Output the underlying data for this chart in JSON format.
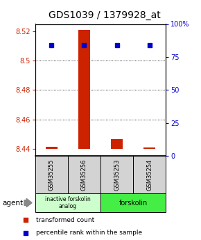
{
  "title": "GDS1039 / 1379928_at",
  "samples": [
    "GSM35255",
    "GSM35256",
    "GSM35253",
    "GSM35254"
  ],
  "bar_values": [
    8.4415,
    8.521,
    8.4465,
    8.4408
  ],
  "bar_base": 8.44,
  "ylim_left": [
    8.435,
    8.525
  ],
  "ylim_right": [
    0,
    100
  ],
  "yticks_left": [
    8.44,
    8.46,
    8.48,
    8.5,
    8.52
  ],
  "ytick_labels_left": [
    "8.44",
    "8.46",
    "8.48",
    "8.5",
    "8.52"
  ],
  "yticks_right": [
    0,
    25,
    50,
    75,
    100
  ],
  "ytick_labels_right": [
    "0",
    "25",
    "50",
    "75",
    "100%"
  ],
  "blue_percentile": 84,
  "bar_color": "#cc2200",
  "dot_color": "#0000cc",
  "group1_label": "inactive forskolin\nanalog",
  "group2_label": "forskolin",
  "group1_color": "#ccffcc",
  "group2_color": "#44ee44",
  "agent_label": "agent",
  "legend1": "transformed count",
  "legend2": "percentile rank within the sample",
  "title_fontsize": 10,
  "bar_width": 0.35
}
